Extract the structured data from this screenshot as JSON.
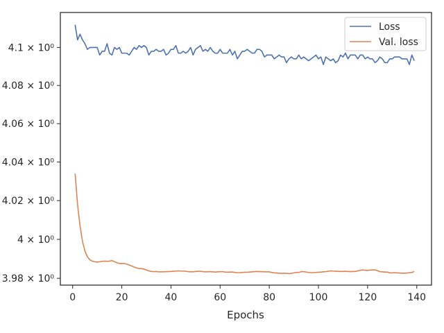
{
  "chart_data": {
    "type": "line",
    "title": "",
    "xlabel": "Epochs",
    "ylabel": "",
    "xlim": [
      -5,
      146
    ],
    "ylim": [
      3.9765,
      4.1185
    ],
    "x_ticks": [
      {
        "value": 0,
        "label": "0"
      },
      {
        "value": 20,
        "label": "20"
      },
      {
        "value": 40,
        "label": "40"
      },
      {
        "value": 60,
        "label": "60"
      },
      {
        "value": 80,
        "label": "80"
      },
      {
        "value": 100,
        "label": "100"
      },
      {
        "value": 120,
        "label": "120"
      },
      {
        "value": 140,
        "label": "140"
      }
    ],
    "y_ticks": [
      {
        "value": 3.98,
        "label": "3.98 × 10⁰"
      },
      {
        "value": 4.0,
        "label": "4 × 10⁰"
      },
      {
        "value": 4.02,
        "label": "4.02 × 10⁰"
      },
      {
        "value": 4.04,
        "label": "4.04 × 10⁰"
      },
      {
        "value": 4.06,
        "label": "4.06 × 10⁰"
      },
      {
        "value": 4.08,
        "label": "4.08 × 10⁰"
      },
      {
        "value": 4.1,
        "label": "4.1 × 10⁰"
      }
    ],
    "y_scale": "log",
    "grid": false,
    "legend_position": "top-right",
    "series": [
      {
        "name": "Loss",
        "color": "#4c72b0",
        "x_start": 1,
        "values": [
          4.112,
          4.104,
          4.107,
          4.104,
          4.102,
          4.099,
          4.1,
          4.1,
          4.1,
          4.1,
          4.096,
          4.098,
          4.098,
          4.102,
          4.097,
          4.096,
          4.1,
          4.099,
          4.1,
          4.097,
          4.097,
          4.097,
          4.096,
          4.098,
          4.1,
          4.099,
          4.101,
          4.1,
          4.101,
          4.1,
          4.096,
          4.098,
          4.098,
          4.099,
          4.098,
          4.098,
          4.099,
          4.096,
          4.097,
          4.099,
          4.099,
          4.101,
          4.097,
          4.097,
          4.098,
          4.097,
          4.098,
          4.1,
          4.096,
          4.099,
          4.1,
          4.101,
          4.098,
          4.099,
          4.098,
          4.1,
          4.098,
          4.097,
          4.097,
          4.099,
          4.097,
          4.097,
          4.097,
          4.099,
          4.096,
          4.098,
          4.094,
          4.096,
          4.098,
          4.098,
          4.099,
          4.098,
          4.097,
          4.097,
          4.099,
          4.099,
          4.098,
          4.095,
          4.096,
          4.096,
          4.096,
          4.094,
          4.095,
          4.096,
          4.095,
          4.095,
          4.092,
          4.094,
          4.095,
          4.094,
          4.094,
          4.096,
          4.094,
          4.095,
          4.094,
          4.093,
          4.094,
          4.095,
          4.096,
          4.094,
          4.095,
          4.091,
          4.095,
          4.094,
          4.093,
          4.094,
          4.092,
          4.093,
          4.096,
          4.095,
          4.097,
          4.094,
          4.096,
          4.096,
          4.096,
          4.094,
          4.096,
          4.096,
          4.094,
          4.095,
          4.094,
          4.094,
          4.092,
          4.093,
          4.095,
          4.094,
          4.092,
          4.092,
          4.094,
          4.094,
          4.095,
          4.095,
          4.095,
          4.094,
          4.094,
          4.094,
          4.091,
          4.096,
          4.093
        ]
      },
      {
        "name": "Val. loss",
        "color": "#dd8452",
        "x_start": 1,
        "values": [
          4.034,
          4.018,
          4.007,
          3.999,
          3.994,
          3.991,
          3.9895,
          3.9888,
          3.9885,
          3.9883,
          3.9885,
          3.9887,
          3.9888,
          3.9887,
          3.9888,
          3.9891,
          3.9885,
          3.988,
          3.9876,
          3.9876,
          3.9876,
          3.9873,
          3.9868,
          3.9863,
          3.9858,
          3.9853,
          3.985,
          3.985,
          3.9847,
          3.9843,
          3.9838,
          3.9835,
          3.9834,
          3.9835,
          3.9833,
          3.9833,
          3.9833,
          3.9834,
          3.9834,
          3.9835,
          3.9836,
          3.9837,
          3.9838,
          3.9837,
          3.9837,
          3.9836,
          3.9834,
          3.9833,
          3.9833,
          3.9835,
          3.9836,
          3.9836,
          3.9834,
          3.9833,
          3.9833,
          3.9834,
          3.9833,
          3.9832,
          3.9833,
          3.9834,
          3.9834,
          3.9832,
          3.9831,
          3.9832,
          3.9832,
          3.983,
          3.9829,
          3.9829,
          3.983,
          3.9831,
          3.9831,
          3.9832,
          3.9833,
          3.9834,
          3.9835,
          3.9834,
          3.9834,
          3.9833,
          3.9833,
          3.9833,
          3.983,
          3.9828,
          3.9827,
          3.9826,
          3.9825,
          3.9826,
          3.9825,
          3.9824,
          3.9825,
          3.9828,
          3.983,
          3.983,
          3.9834,
          3.9834,
          3.9832,
          3.983,
          3.9829,
          3.9829,
          3.983,
          3.9831,
          3.9832,
          3.9833,
          3.9834,
          3.9836,
          3.9838,
          3.9837,
          3.9836,
          3.9836,
          3.9835,
          3.9835,
          3.9836,
          3.9835,
          3.9834,
          3.9835,
          3.9835,
          3.9838,
          3.9841,
          3.9843,
          3.9841,
          3.984,
          3.9842,
          3.9843,
          3.9843,
          3.9839,
          3.9834,
          3.9833,
          3.9832,
          3.9832,
          3.9828,
          3.9828,
          3.9829,
          3.9828,
          3.9827,
          3.9826,
          3.9826,
          3.9827,
          3.9829,
          3.983,
          3.9835
        ]
      }
    ]
  }
}
